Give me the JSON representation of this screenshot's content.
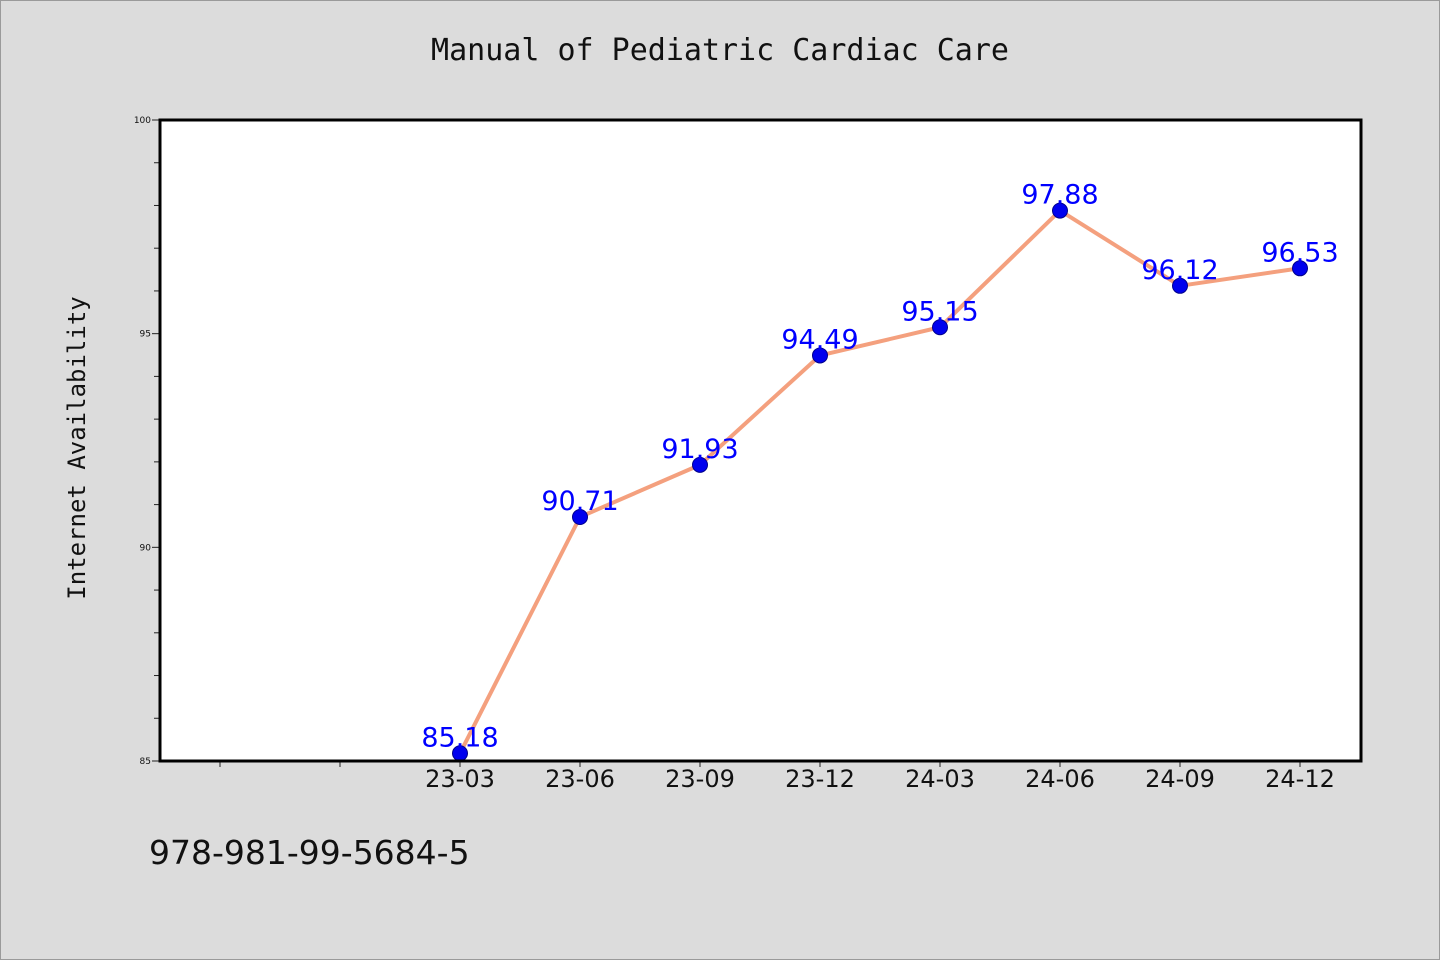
{
  "chart_data": {
    "type": "line",
    "title": "Manual of Pediatric Cardiac Care",
    "xlabel": "",
    "ylabel": "Internet Availability",
    "categories": [
      "23-03",
      "23-06",
      "23-09",
      "23-12",
      "24-03",
      "24-06",
      "24-09",
      "24-12"
    ],
    "values": [
      85.18,
      90.71,
      91.93,
      94.49,
      95.15,
      97.88,
      96.12,
      96.53
    ],
    "ylim": [
      85,
      100
    ],
    "yticks": [
      "85",
      "90",
      "95",
      "100"
    ],
    "grid": false,
    "colors": {
      "line": "#f4a07e",
      "marker": "#0000ee",
      "data_label": "#0000ff"
    }
  },
  "footer_text": "978-981-99-5684-5"
}
